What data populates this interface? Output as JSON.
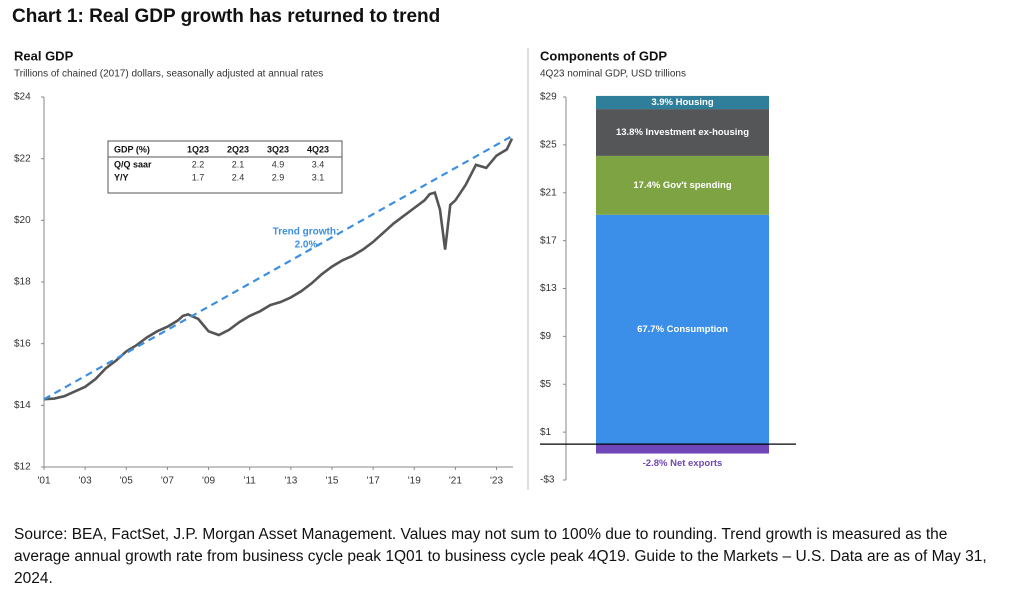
{
  "title": "Chart 1: Real GDP growth has returned to trend",
  "chart_data": [
    {
      "type": "line",
      "title": "Real GDP",
      "subtitle": "Trillions of chained (2017) dollars, seasonally adjusted at annual rates",
      "xlim": [
        2001,
        2023.8
      ],
      "xticks": [
        {
          "value": 2001,
          "label": "'01"
        },
        {
          "value": 2003,
          "label": "'03"
        },
        {
          "value": 2005,
          "label": "'05"
        },
        {
          "value": 2007,
          "label": "'07"
        },
        {
          "value": 2009,
          "label": "'09"
        },
        {
          "value": 2011,
          "label": "'11"
        },
        {
          "value": 2013,
          "label": "'13"
        },
        {
          "value": 2015,
          "label": "'15"
        },
        {
          "value": 2017,
          "label": "'17"
        },
        {
          "value": 2019,
          "label": "'19"
        },
        {
          "value": 2021,
          "label": "'21"
        },
        {
          "value": 2023,
          "label": "'23"
        }
      ],
      "ylim": [
        12,
        24
      ],
      "yticks": [
        {
          "value": 12,
          "label": "$12"
        },
        {
          "value": 14,
          "label": "$14"
        },
        {
          "value": 16,
          "label": "$16"
        },
        {
          "value": 18,
          "label": "$18"
        },
        {
          "value": 20,
          "label": "$20"
        },
        {
          "value": 22,
          "label": "$22"
        },
        {
          "value": 24,
          "label": "$24"
        }
      ],
      "series": [
        {
          "name": "Real GDP",
          "color": "#555555",
          "dashed": false,
          "x": [
            2001,
            2001.5,
            2002,
            2002.5,
            2003,
            2003.5,
            2004,
            2004.5,
            2005,
            2005.5,
            2006,
            2006.5,
            2007,
            2007.5,
            2007.75,
            2008,
            2008.5,
            2009,
            2009.5,
            2010,
            2010.5,
            2011,
            2011.5,
            2012,
            2012.5,
            2013,
            2013.5,
            2014,
            2014.5,
            2015,
            2015.5,
            2016,
            2016.5,
            2017,
            2017.5,
            2018,
            2018.5,
            2019,
            2019.5,
            2019.75,
            2020,
            2020.25,
            2020.5,
            2020.75,
            2021,
            2021.5,
            2022,
            2022.5,
            2023,
            2023.5,
            2023.75
          ],
          "values": [
            14.2,
            14.22,
            14.3,
            14.45,
            14.6,
            14.85,
            15.2,
            15.45,
            15.75,
            15.95,
            16.2,
            16.4,
            16.55,
            16.75,
            16.9,
            16.95,
            16.8,
            16.4,
            16.28,
            16.45,
            16.7,
            16.9,
            17.05,
            17.25,
            17.35,
            17.5,
            17.7,
            17.95,
            18.25,
            18.5,
            18.7,
            18.85,
            19.05,
            19.3,
            19.6,
            19.9,
            20.15,
            20.4,
            20.65,
            20.85,
            20.9,
            20.35,
            19.05,
            20.5,
            20.65,
            21.15,
            21.8,
            21.7,
            22.1,
            22.3,
            22.65
          ]
        },
        {
          "name": "Trend",
          "color": "#3d8fe0",
          "dashed": true,
          "x": [
            2001,
            2023.8
          ],
          "values": [
            14.2,
            22.75
          ]
        }
      ],
      "annotations": [
        "Trend growth:",
        "2.0%"
      ],
      "table": {
        "header": [
          "GDP (%)",
          "1Q23",
          "2Q23",
          "3Q23",
          "4Q23"
        ],
        "rows": [
          [
            "Q/Q saar",
            "2.2",
            "2.1",
            "4.9",
            "3.4"
          ],
          [
            "Y/Y",
            "1.7",
            "2.4",
            "2.9",
            "3.1"
          ]
        ]
      }
    },
    {
      "type": "stacked-bar",
      "title": "Components of GDP",
      "subtitle": "4Q23 nominal GDP, USD trillions",
      "ylim": [
        -3,
        29
      ],
      "yticks": [
        {
          "value": 29,
          "label": "$29"
        },
        {
          "value": 25,
          "label": "$25"
        },
        {
          "value": 21,
          "label": "$21"
        },
        {
          "value": 17,
          "label": "$17"
        },
        {
          "value": 13,
          "label": "$13"
        },
        {
          "value": 9,
          "label": "$9"
        },
        {
          "value": 5,
          "label": "$5"
        },
        {
          "value": 1,
          "label": "$1"
        },
        {
          "value": -3,
          "label": "-$3"
        }
      ],
      "series": [
        {
          "name": "67.7% Consumption",
          "color": "#3b8fe8",
          "values": [
            19.16
          ]
        },
        {
          "name": "17.4% Gov't spending",
          "color": "#7ea342",
          "values": [
            4.92
          ]
        },
        {
          "name": "13.8% Investment ex-housing",
          "color": "#555658",
          "values": [
            3.91
          ]
        },
        {
          "name": "3.9% Housing",
          "color": "#2f7f9b",
          "values": [
            1.1
          ]
        },
        {
          "name": "-2.8% Net exports",
          "color": "#7047b9",
          "values": [
            -0.79
          ]
        }
      ]
    }
  ],
  "footnote": "Source: BEA, FactSet, J.P. Morgan Asset Management. Values may not sum to 100% due to rounding. Trend growth is measured as the average annual growth rate from business cycle peak 1Q01 to business cycle peak 4Q19. Guide to the Markets – U.S. Data are as of May 31, 2024."
}
